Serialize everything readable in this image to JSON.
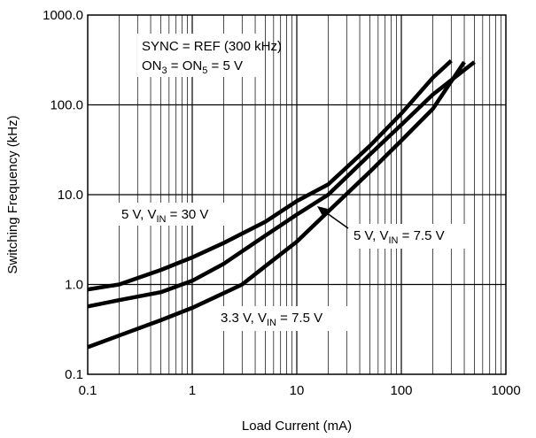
{
  "chart_data": {
    "type": "line",
    "x_scale": "log",
    "y_scale": "log",
    "xlim": [
      0.1,
      1000
    ],
    "ylim": [
      0.1,
      1000
    ],
    "grid": true,
    "xlabel": "Load Current (mA)",
    "ylabel": "Switching Frequency (kHz)",
    "x_ticks": [
      "0.1",
      "1",
      "10",
      "100",
      "1000"
    ],
    "y_ticks": [
      "0.1",
      "1.0",
      "10.0",
      "100.0",
      "1000.0"
    ],
    "annotations": {
      "sync_line": "SYNC = REF (300 kHz)",
      "on_line": {
        "a": "ON",
        "a_sub": "3",
        "mid": " = ON",
        "b_sub": "5",
        "tail": " = 5 V"
      },
      "label_30v": {
        "pre": "5 V, V",
        "sub": "IN",
        "post": " = 30 V"
      },
      "label_75v": {
        "pre": "5 V, V",
        "sub": "IN",
        "post": " = 7.5 V"
      },
      "label_33v": {
        "pre": "3.3 V, V",
        "sub": "IN",
        "post": " = 7.5 V"
      }
    },
    "series": [
      {
        "x": [
          0.1,
          0.2,
          0.5,
          1,
          2,
          5,
          10,
          20,
          50,
          100,
          200,
          300
        ],
        "y": [
          0.88,
          1.0,
          1.45,
          2.0,
          2.9,
          5.0,
          8.5,
          13,
          35,
          80,
          200,
          310
        ]
      },
      {
        "x": [
          0.1,
          0.2,
          0.5,
          1,
          2,
          5,
          10,
          20,
          50,
          100,
          200,
          500
        ],
        "y": [
          0.57,
          0.67,
          0.82,
          1.1,
          1.7,
          3.5,
          6.0,
          10,
          28,
          60,
          130,
          300
        ]
      },
      {
        "x": [
          0.1,
          0.2,
          0.5,
          1,
          2,
          3,
          5,
          10,
          20,
          50,
          100,
          200,
          400
        ],
        "y": [
          0.2,
          0.27,
          0.4,
          0.55,
          0.8,
          1.0,
          1.6,
          3.0,
          6.5,
          18,
          40,
          90,
          300
        ]
      }
    ]
  }
}
